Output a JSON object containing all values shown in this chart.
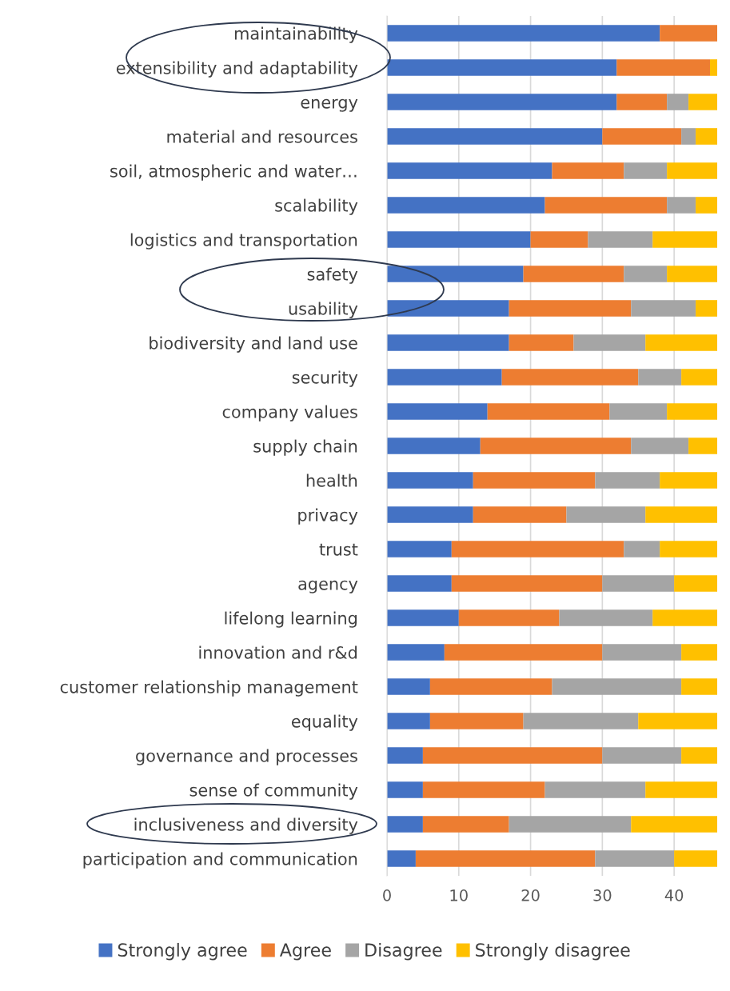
{
  "chart_data": {
    "type": "bar",
    "orientation": "horizontal",
    "stacked": true,
    "categories": [
      "maintainability",
      "extensibility and adaptability",
      "energy",
      "material and resources",
      "soil, atmospheric and water…",
      "scalability",
      "logistics and transportation",
      "safety",
      "usability",
      "biodiversity and land use",
      "security",
      "company values",
      "supply chain",
      "health",
      "privacy",
      "trust",
      "agency",
      "lifelong learning",
      "innovation and r&d",
      "customer relationship management",
      "equality",
      "governance and processes",
      "sense of community",
      "inclusiveness and diversity",
      "participation and communication"
    ],
    "series": [
      {
        "name": "Strongly agree",
        "color": "#4472c4",
        "values": [
          38,
          32,
          32,
          30,
          23,
          22,
          20,
          19,
          17,
          17,
          16,
          14,
          13,
          12,
          12,
          9,
          9,
          10,
          8,
          6,
          6,
          5,
          5,
          5,
          4
        ]
      },
      {
        "name": "Agree",
        "color": "#ed7d31",
        "values": [
          8,
          13,
          7,
          11,
          10,
          17,
          8,
          14,
          17,
          9,
          19,
          17,
          21,
          17,
          13,
          24,
          21,
          14,
          22,
          17,
          13,
          25,
          17,
          12,
          25
        ]
      },
      {
        "name": "Disagree",
        "color": "#a5a5a5",
        "values": [
          0,
          0,
          3,
          2,
          6,
          4,
          9,
          6,
          9,
          10,
          6,
          8,
          8,
          9,
          11,
          5,
          10,
          13,
          11,
          18,
          16,
          11,
          14,
          17,
          11
        ]
      },
      {
        "name": "Strongly disagree",
        "color": "#ffc000",
        "values": [
          0,
          1,
          4,
          3,
          7,
          3,
          9,
          7,
          3,
          10,
          5,
          7,
          4,
          8,
          10,
          8,
          6,
          9,
          5,
          5,
          11,
          5,
          10,
          12,
          6
        ]
      }
    ],
    "xlim": [
      0,
      46
    ],
    "xticks": [
      0,
      10,
      20,
      30,
      40
    ],
    "grid": "x",
    "legend": "bottom"
  }
}
